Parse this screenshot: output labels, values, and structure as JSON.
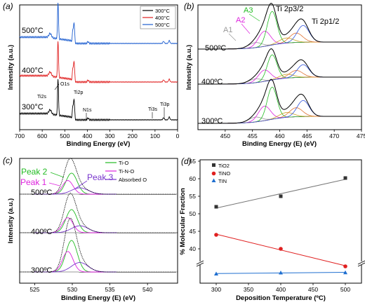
{
  "chart_data": [
    {
      "panel": "(a)",
      "type": "line",
      "xlabel": "Binding Energy (eV)",
      "ylabel": "Intensity (a.u.)",
      "xlim": [
        700,
        0
      ],
      "xticks": [
        700,
        600,
        500,
        400,
        300,
        200,
        100,
        0
      ],
      "legend": [
        "300°C",
        "400°C",
        "500°C"
      ],
      "legend_position": "top-right",
      "series_colors": [
        "#000000",
        "#e02020",
        "#1f5fd0"
      ],
      "curve_labels": [
        "500°C",
        "400°C",
        "300°C"
      ],
      "peak_labels": [
        "Ti2s",
        "O1s",
        "Ti2p",
        "N1s",
        "Ti3s",
        "Ti3p"
      ],
      "peaks_eV": [
        565,
        530,
        459,
        397,
        62,
        37
      ]
    },
    {
      "panel": "(b)",
      "type": "line",
      "xlabel": "Binding Energy (E) (eV)",
      "ylabel": "Intensity (a.u.)",
      "xlim": [
        445,
        475
      ],
      "xticks": [
        450,
        455,
        460,
        465,
        470,
        475
      ],
      "curve_labels": [
        "500ºC",
        "400ºC",
        "300ºC"
      ],
      "peak_labels": [
        "A1",
        "A2",
        "A3",
        "Ti 2p3/2",
        "Ti 2p1/2"
      ],
      "peak_centers_eV": [
        455.5,
        457.2,
        458.5,
        458.6,
        464.3
      ]
    },
    {
      "panel": "(c)",
      "type": "line",
      "xlabel": "Binding Energy (E) (eV)",
      "ylabel": "Intensity (a.u.)",
      "xlim": [
        523,
        544
      ],
      "xticks": [
        525,
        530,
        535,
        540
      ],
      "legend": [
        "Ti-O",
        "Ti-N-O",
        "Absorbed O"
      ],
      "legend_colors": [
        "#22bb22",
        "#dd22dd",
        "#7733cc"
      ],
      "curve_labels": [
        "500ºC",
        "400ºC",
        "300ºC"
      ],
      "peak_labels": [
        "Peak 1",
        "Peak 2",
        "Peak 3"
      ],
      "peak_centers_eV": [
        529.5,
        529.9,
        531.2
      ]
    },
    {
      "panel": "(d)",
      "type": "scatter",
      "xlabel": "Deposition Temperature (ºC)",
      "ylabel": "% Molecular Fraction",
      "xlim": [
        275,
        525
      ],
      "xticks": [
        300,
        350,
        400,
        450,
        500
      ],
      "yticks": [
        40,
        45,
        50,
        55,
        60,
        65
      ],
      "y_break": true,
      "legend": [
        "TiO2",
        "TiNO",
        "TIN"
      ],
      "x": [
        300,
        400,
        500
      ],
      "series": [
        {
          "name": "TiO2",
          "values": [
            52,
            55,
            60.2
          ],
          "color": "#333333",
          "marker": "square"
        },
        {
          "name": "TiNO",
          "values": [
            44,
            40,
            35
          ],
          "color": "#e02020",
          "marker": "circle"
        },
        {
          "name": "TIN",
          "values": [
            4,
            5,
            5.2
          ],
          "color": "#1f6fd0",
          "marker": "triangle"
        }
      ]
    }
  ]
}
